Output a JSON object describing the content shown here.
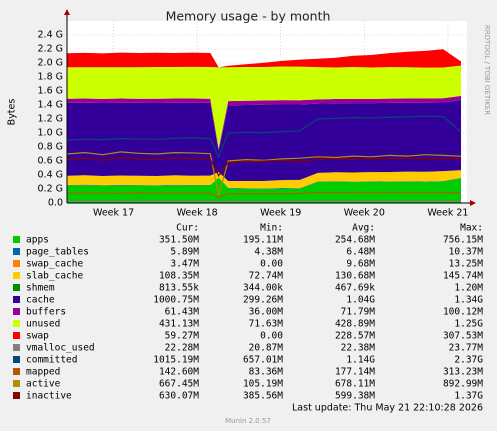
{
  "chart_data": {
    "type": "area",
    "title": "Memory usage - by month",
    "y_label": "Bytes",
    "side_text": "RRDTOOL / TOBI OETIKER",
    "footer": "Last update: Thu May 21 22:10:28 2026",
    "version": "Munin 2.0.57",
    "grid": true,
    "xlim": [
      0,
      33.5
    ],
    "xticks": [
      {
        "value": 3.9,
        "label": "Week 17"
      },
      {
        "value": 10.9,
        "label": "Week 18"
      },
      {
        "value": 17.9,
        "label": "Week 19"
      },
      {
        "value": 24.9,
        "label": "Week 20"
      },
      {
        "value": 31.9,
        "label": "Week 21"
      }
    ],
    "ylim": [
      0,
      2600000000.0
    ],
    "yticks": [
      {
        "value": 0,
        "label": "0.0"
      },
      {
        "value": 200000000.0,
        "label": "0.2 G"
      },
      {
        "value": 400000000.0,
        "label": "0.4 G"
      },
      {
        "value": 600000000.0,
        "label": "0.6 G"
      },
      {
        "value": 800000000.0,
        "label": "0.8 G"
      },
      {
        "value": 1000000000.0,
        "label": "1.0 G"
      },
      {
        "value": 1200000000.0,
        "label": "1.2 G"
      },
      {
        "value": 1400000000.0,
        "label": "1.4 G"
      },
      {
        "value": 1600000000.0,
        "label": "1.6 G"
      },
      {
        "value": 1800000000.0,
        "label": "1.8 G"
      },
      {
        "value": 2000000000.0,
        "label": "2.0 G"
      },
      {
        "value": 2200000000.0,
        "label": "2.2 G"
      },
      {
        "value": 2400000000.0,
        "label": "2.4 G"
      }
    ],
    "x": [
      0,
      1.5,
      3,
      4.5,
      6,
      7.5,
      9,
      10.5,
      12,
      12.7,
      13.5,
      15,
      16.5,
      18,
      19.5,
      21,
      22.5,
      24,
      25.5,
      27,
      28.5,
      30,
      31.5,
      33
    ],
    "series": [
      {
        "name": "apps",
        "color": "#00cc00",
        "style": "area",
        "values": [
          250000000.0,
          255000000.0,
          248000000.0,
          252000000.0,
          250000000.0,
          247000000.0,
          253000000.0,
          250000000.0,
          251000000.0,
          360000000.0,
          210000000.0,
          205000000.0,
          200000000.0,
          208000000.0,
          205000000.0,
          300000000.0,
          305000000.0,
          298000000.0,
          302000000.0,
          300000000.0,
          304000000.0,
          299000000.0,
          306000000.0,
          352000000.0
        ]
      },
      {
        "name": "page_tables",
        "color": "#0066b3",
        "style": "area",
        "values": [
          6000000.0,
          6000000.0,
          6000000.0,
          6000000.0,
          6000000.0,
          6000000.0,
          6000000.0,
          6000000.0,
          6000000.0,
          5000000.0,
          6000000.0,
          6000000.0,
          6000000.0,
          6000000.0,
          6000000.0,
          6000000.0,
          6000000.0,
          6000000.0,
          6000000.0,
          6000000.0,
          6000000.0,
          6000000.0,
          6000000.0,
          6000000.0
        ]
      },
      {
        "name": "swap_cache",
        "color": "#ff8000",
        "style": "area",
        "values": [
          3000000.0,
          3000000.0,
          3000000.0,
          3000000.0,
          3000000.0,
          3000000.0,
          3000000.0,
          3000000.0,
          3000000.0,
          0,
          3000000.0,
          3000000.0,
          3000000.0,
          3000000.0,
          3000000.0,
          3000000.0,
          3000000.0,
          3000000.0,
          3000000.0,
          3000000.0,
          3000000.0,
          3000000.0,
          3000000.0,
          3000000.0
        ]
      },
      {
        "name": "slab_cache",
        "color": "#ffcc00",
        "style": "area",
        "values": [
          130000000.0,
          132000000.0,
          128000000.0,
          131000000.0,
          130000000.0,
          129000000.0,
          133000000.0,
          130000000.0,
          131000000.0,
          75000000.0,
          95000000.0,
          100000000.0,
          105000000.0,
          110000000.0,
          115000000.0,
          120000000.0,
          125000000.0,
          128000000.0,
          130000000.0,
          132000000.0,
          135000000.0,
          138000000.0,
          140000000.0,
          108000000.0
        ]
      },
      {
        "name": "shmem",
        "color": "#008f00",
        "style": "area",
        "values": [
          1000000.0,
          1000000.0,
          1000000.0,
          1000000.0,
          1000000.0,
          1000000.0,
          1000000.0,
          1000000.0,
          1000000.0,
          300000.0,
          1000000.0,
          1000000.0,
          1000000.0,
          1000000.0,
          1000000.0,
          1000000.0,
          1000000.0,
          1000000.0,
          1000000.0,
          1000000.0,
          1000000.0,
          1000000.0,
          1000000.0,
          800000.0
        ]
      },
      {
        "name": "cache",
        "color": "#330099",
        "style": "area",
        "values": [
          1040000000.0,
          1035000000.0,
          1042000000.0,
          1038000000.0,
          1040000000.0,
          1043000000.0,
          1036000000.0,
          1040000000.0,
          1038000000.0,
          300000000.0,
          1080000000.0,
          1085000000.0,
          1090000000.0,
          1080000000.0,
          1078000000.0,
          990000000.0,
          985000000.0,
          990000000.0,
          985000000.0,
          988000000.0,
          983000000.0,
          985000000.0,
          980000000.0,
          1000000000.0
        ]
      },
      {
        "name": "buffers",
        "color": "#990099",
        "style": "area",
        "values": [
          60000000.0,
          61000000.0,
          60000000.0,
          62000000.0,
          60000000.0,
          61000000.0,
          60000000.0,
          62000000.0,
          60000000.0,
          36000000.0,
          60000000.0,
          61000000.0,
          60000000.0,
          62000000.0,
          60000000.0,
          61000000.0,
          60000000.0,
          62000000.0,
          60000000.0,
          61000000.0,
          60000000.0,
          62000000.0,
          60000000.0,
          61000000.0
        ]
      },
      {
        "name": "unused",
        "color": "#ccff00",
        "style": "area",
        "values": [
          450000000.0,
          447000000.0,
          452000000.0,
          446000000.0,
          450000000.0,
          452000000.0,
          450000000.0,
          452000000.0,
          452000000.0,
          1162000000.0,
          485000000.0,
          481000000.0,
          478000000.0,
          480000000.0,
          480000000.0,
          460000000.0,
          450000000.0,
          455000000.0,
          448000000.0,
          450000000.0,
          448000000.0,
          440000000.0,
          440000000.0,
          431000000.0
        ]
      },
      {
        "name": "swap",
        "color": "#ff0000",
        "style": "area",
        "values": [
          200000000.0,
          205000000.0,
          198000000.0,
          210000000.0,
          202000000.0,
          205000000.0,
          200000000.0,
          204000000.0,
          200000000.0,
          0,
          20000000.0,
          40000000.0,
          60000000.0,
          80000000.0,
          100000000.0,
          120000000.0,
          140000000.0,
          160000000.0,
          180000000.0,
          200000000.0,
          220000000.0,
          240000000.0,
          260000000.0,
          59000000.0
        ]
      },
      {
        "name": "vmalloc_used",
        "color": "#808080",
        "style": "line",
        "values": [
          22000000.0,
          22000000.0,
          22000000.0,
          22000000.0,
          22000000.0,
          22000000.0,
          22000000.0,
          22000000.0,
          22000000.0,
          21000000.0,
          22000000.0,
          22000000.0,
          22000000.0,
          22000000.0,
          22000000.0,
          22000000.0,
          22000000.0,
          22000000.0,
          22000000.0,
          22000000.0,
          22000000.0,
          22000000.0,
          22000000.0,
          22000000.0
        ]
      },
      {
        "name": "committed",
        "color": "#00487d",
        "style": "line",
        "values": [
          900000000.0,
          910000000.0,
          905000000.0,
          920000000.0,
          915000000.0,
          910000000.0,
          925000000.0,
          930000000.0,
          920000000.0,
          660000000.0,
          1000000000.0,
          1010000000.0,
          1005000000.0,
          1020000000.0,
          1030000000.0,
          1200000000.0,
          1210000000.0,
          1220000000.0,
          1215000000.0,
          1225000000.0,
          1230000000.0,
          1240000000.0,
          1235000000.0,
          1015000000.0
        ]
      },
      {
        "name": "mapped",
        "color": "#b35a00",
        "style": "line",
        "values": [
          140000000.0,
          142000000.0,
          141000000.0,
          139000000.0,
          143000000.0,
          140000000.0,
          142000000.0,
          141000000.0,
          140000000.0,
          85000000.0,
          130000000.0,
          132000000.0,
          135000000.0,
          134000000.0,
          136000000.0,
          150000000.0,
          148000000.0,
          150000000.0,
          149000000.0,
          151000000.0,
          150000000.0,
          149000000.0,
          152000000.0,
          143000000.0
        ]
      },
      {
        "name": "active",
        "color": "#b38f00",
        "style": "line",
        "values": [
          700000000.0,
          720000000.0,
          690000000.0,
          730000000.0,
          710000000.0,
          700000000.0,
          720000000.0,
          715000000.0,
          705000000.0,
          110000000.0,
          600000000.0,
          620000000.0,
          610000000.0,
          630000000.0,
          640000000.0,
          660000000.0,
          650000000.0,
          670000000.0,
          660000000.0,
          680000000.0,
          670000000.0,
          690000000.0,
          680000000.0,
          667000000.0
        ]
      },
      {
        "name": "inactive",
        "color": "#8b0000",
        "style": "line",
        "values": [
          620000000.0,
          640000000.0,
          610000000.0,
          650000000.0,
          630000000.0,
          620000000.0,
          645000000.0,
          630000000.0,
          625000000.0,
          390000000.0,
          580000000.0,
          590000000.0,
          600000000.0,
          610000000.0,
          600000000.0,
          620000000.0,
          630000000.0,
          625000000.0,
          635000000.0,
          630000000.0,
          640000000.0,
          630000000.0,
          635000000.0,
          630000000.0
        ]
      }
    ],
    "stats": {
      "columns": [
        "Cur:",
        "Min:",
        "Avg:",
        "Max:"
      ],
      "rows": [
        [
          "351.50M",
          "195.11M",
          "254.68M",
          "756.15M"
        ],
        [
          "5.89M",
          "4.38M",
          "6.48M",
          "10.37M"
        ],
        [
          "3.47M",
          "0.00",
          "9.68M",
          "13.25M"
        ],
        [
          "108.35M",
          "72.74M",
          "130.68M",
          "145.74M"
        ],
        [
          "813.55k",
          "344.00k",
          "467.69k",
          "1.20M"
        ],
        [
          "1000.75M",
          "299.26M",
          "1.04G",
          "1.34G"
        ],
        [
          "61.43M",
          "36.00M",
          "71.79M",
          "100.12M"
        ],
        [
          "431.13M",
          "71.63M",
          "428.89M",
          "1.25G"
        ],
        [
          "59.27M",
          "0.00",
          "228.57M",
          "307.53M"
        ],
        [
          "22.28M",
          "20.87M",
          "22.38M",
          "23.77M"
        ],
        [
          "1015.19M",
          "657.01M",
          "1.14G",
          "2.37G"
        ],
        [
          "142.60M",
          "83.36M",
          "177.14M",
          "313.23M"
        ],
        [
          "667.45M",
          "105.19M",
          "678.11M",
          "892.99M"
        ],
        [
          "630.07M",
          "385.56M",
          "599.38M",
          "1.37G"
        ]
      ]
    }
  }
}
